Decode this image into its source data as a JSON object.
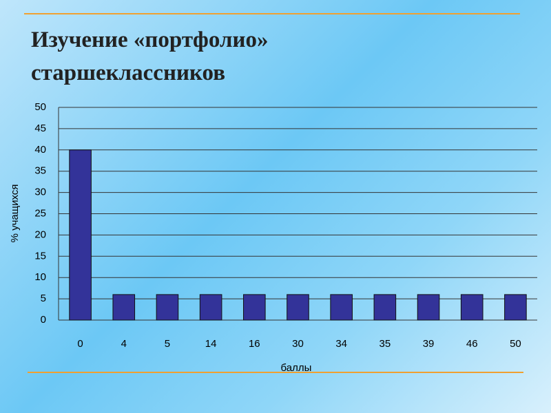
{
  "chart_data": {
    "type": "bar",
    "title": "Изучение «портфолио» старшеклассников",
    "x_label": "баллы",
    "y_label": "% учащихся",
    "categories": [
      "0",
      "4",
      "5",
      "14",
      "16",
      "30",
      "34",
      "35",
      "39",
      "46",
      "50"
    ],
    "values": [
      40,
      6,
      6,
      6,
      6,
      6,
      6,
      6,
      6,
      6,
      6
    ],
    "color": "#333399",
    "ylim": [
      0,
      50
    ],
    "yticks": [
      0,
      5,
      10,
      15,
      20,
      25,
      30,
      35,
      40,
      45,
      50
    ],
    "grid": true
  }
}
